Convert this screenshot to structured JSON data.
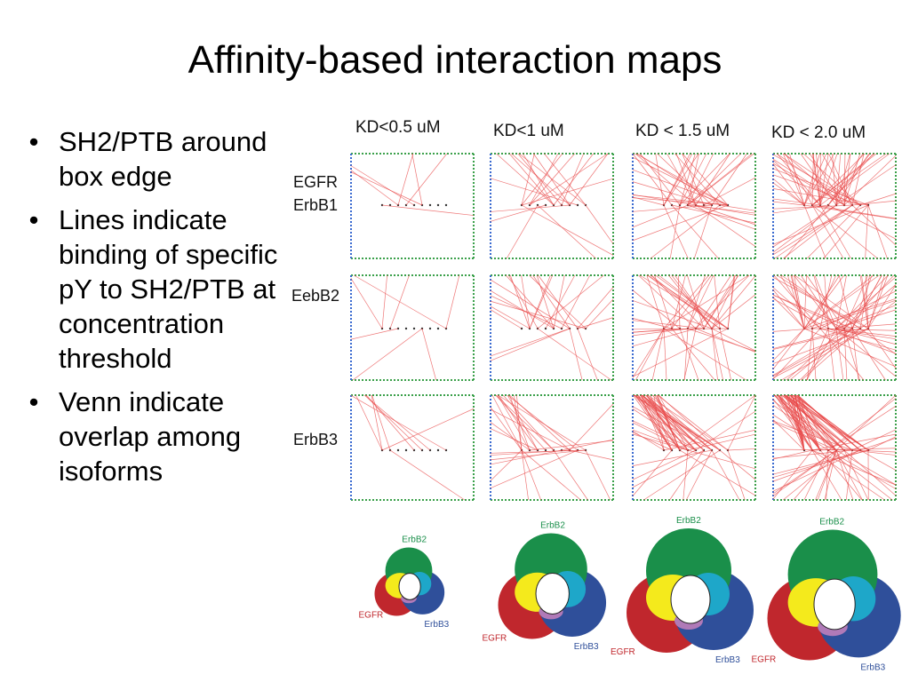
{
  "slide": {
    "title": "Affinity-based interaction maps",
    "bullets": [
      "SH2/PTB around box edge",
      "Lines indicate binding of specific pY to SH2/PTB at concentration threshold",
      "Venn indicate overlap among isoforms"
    ]
  },
  "figure": {
    "columns": [
      "KD<0.5 uM",
      "KD<1 uM",
      "KD < 1.5 uM",
      "KD < 2.0 uM"
    ],
    "rows": [
      {
        "label_line1": "EGFR",
        "label_line2": "ErbB1"
      },
      {
        "label_line1": "EebB2",
        "label_line2": ""
      },
      {
        "label_line1": "ErbB3",
        "label_line2": ""
      }
    ],
    "venn_labels": {
      "top": "ErbB2",
      "left": "EGFR",
      "right": "ErbB3"
    },
    "colors": {
      "line": "#e84a4a",
      "box_top": "#3aa04a",
      "box_left": "#3a6ad0",
      "venn_erbb2": "#1a8f4a",
      "venn_egfr": "#c0272d",
      "venn_erbb3": "#2f4f9a",
      "venn_yellow": "#f4ea1c",
      "venn_cyan": "#1ea7c9",
      "venn_purple": "#b07ab8"
    }
  }
}
